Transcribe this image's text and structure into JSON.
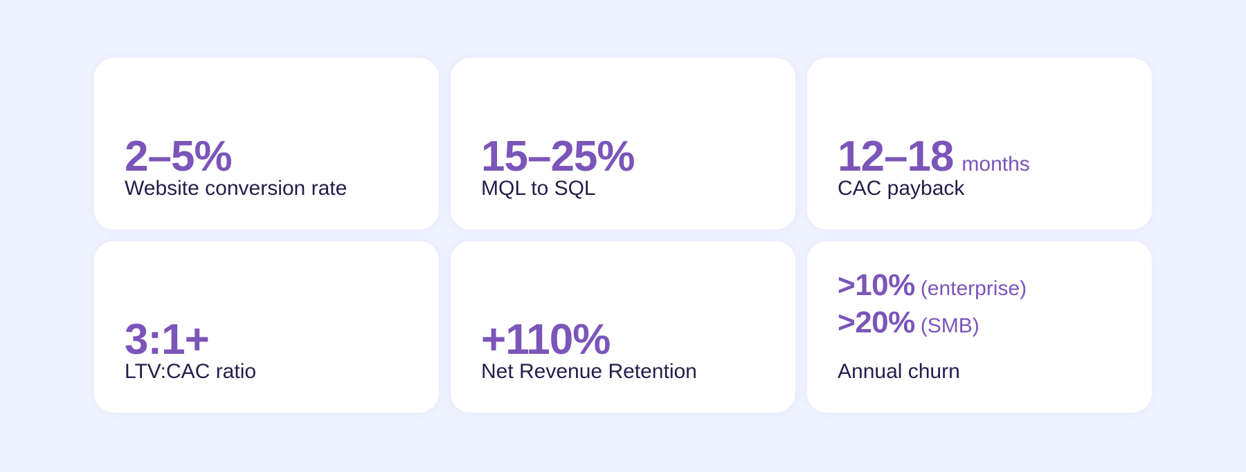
{
  "cards": [
    {
      "value": "2–5%",
      "label": "Website conversion rate"
    },
    {
      "value": "15–25%",
      "label": "MQL to SQL"
    },
    {
      "value": "12–18",
      "unit": "months",
      "label": "CAC payback"
    },
    {
      "value": "3:1+",
      "label": "LTV:CAC ratio"
    },
    {
      "value": "+110%",
      "label": "Net Revenue Retention"
    },
    {
      "lines": [
        {
          "value": ">10%",
          "qualifier": "(enterprise)"
        },
        {
          "value": ">20%",
          "qualifier": "(SMB)"
        }
      ],
      "label": "Annual churn"
    }
  ],
  "colors": {
    "background": "#EEF4FF",
    "card": "#FFFFFF",
    "accent": "#7B55B9",
    "label": "#211E4A"
  }
}
